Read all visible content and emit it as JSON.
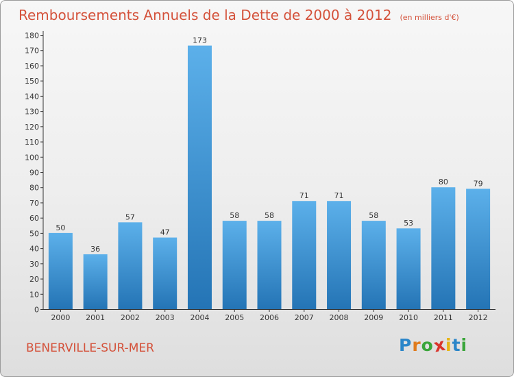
{
  "title": "Remboursements Annuels de la Dette de 2000 à 2012",
  "subtitle": "(en milliers d'€)",
  "town": "BENERVILLE-SUR-MER",
  "logo": {
    "letters": [
      "P",
      "r",
      "o",
      "x",
      "i",
      "t",
      "i"
    ],
    "colors": [
      "#2b86c9",
      "#e07b1c",
      "#3aa53a",
      "#d9342b",
      "#e7b416",
      "#2b86c9",
      "#3aa53a"
    ]
  },
  "colors": {
    "bar_top": "#5cb0ea",
    "bar_bottom": "#2474b5",
    "title": "#d4513a"
  },
  "chart_data": {
    "type": "bar",
    "title": "Remboursements Annuels de la Dette de 2000 à 2012",
    "subtitle": "(en milliers d'€)",
    "categories": [
      "2000",
      "2001",
      "2002",
      "2003",
      "2004",
      "2005",
      "2006",
      "2007",
      "2008",
      "2009",
      "2010",
      "2011",
      "2012"
    ],
    "values": [
      50,
      36,
      57,
      47,
      173,
      58,
      58,
      71,
      71,
      58,
      53,
      80,
      79
    ],
    "ylim": [
      0,
      180
    ],
    "yticks": [
      0,
      10,
      20,
      30,
      40,
      50,
      60,
      70,
      80,
      90,
      100,
      110,
      120,
      130,
      140,
      150,
      160,
      170,
      180
    ],
    "grid": false,
    "data_labels": true
  }
}
